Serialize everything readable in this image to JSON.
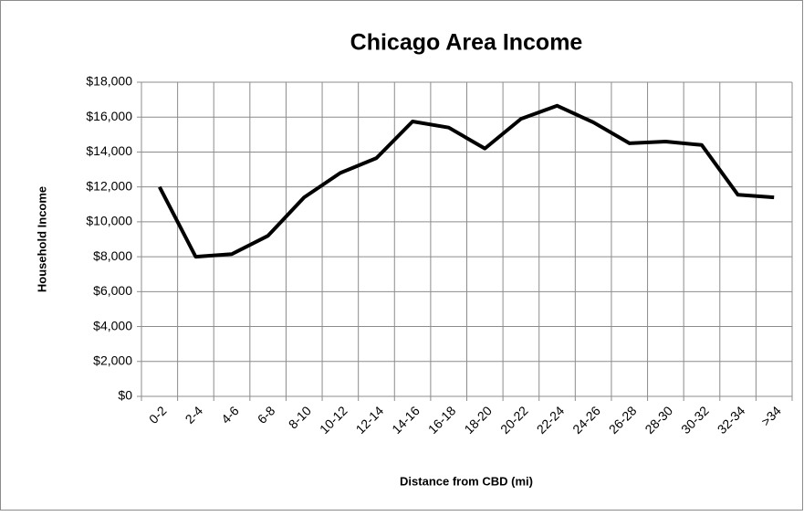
{
  "chart_data": {
    "type": "line",
    "title": "Chicago Area Income",
    "x_label": "Distance from CBD (mi)",
    "y_label": "Household Income",
    "categories": [
      "0-2",
      "2-4",
      "4-6",
      "6-8",
      "8-10",
      "10-12",
      "12-14",
      "14-16",
      "16-18",
      "18-20",
      "20-22",
      "22-24",
      "24-26",
      "26-28",
      "28-30",
      "30-32",
      "32-34",
      ">34"
    ],
    "series": [
      {
        "name": "Household Income",
        "color": "#000000",
        "values": [
          12000,
          8000,
          8150,
          9200,
          11400,
          12800,
          13650,
          15750,
          15400,
          14200,
          15900,
          16650,
          15700,
          14500,
          14600,
          14400,
          11550,
          11400
        ]
      }
    ],
    "ylim": [
      0,
      18000
    ],
    "yticks": [
      {
        "value": 0,
        "label": "$0"
      },
      {
        "value": 2000,
        "label": "$2,000"
      },
      {
        "value": 4000,
        "label": "$4,000"
      },
      {
        "value": 6000,
        "label": "$6,000"
      },
      {
        "value": 8000,
        "label": "$8,000"
      },
      {
        "value": 10000,
        "label": "$10,000"
      },
      {
        "value": 12000,
        "label": "$12,000"
      },
      {
        "value": 14000,
        "label": "$14,000"
      },
      {
        "value": 16000,
        "label": "$16,000"
      },
      {
        "value": 18000,
        "label": "$18,000"
      }
    ],
    "grid": true
  }
}
